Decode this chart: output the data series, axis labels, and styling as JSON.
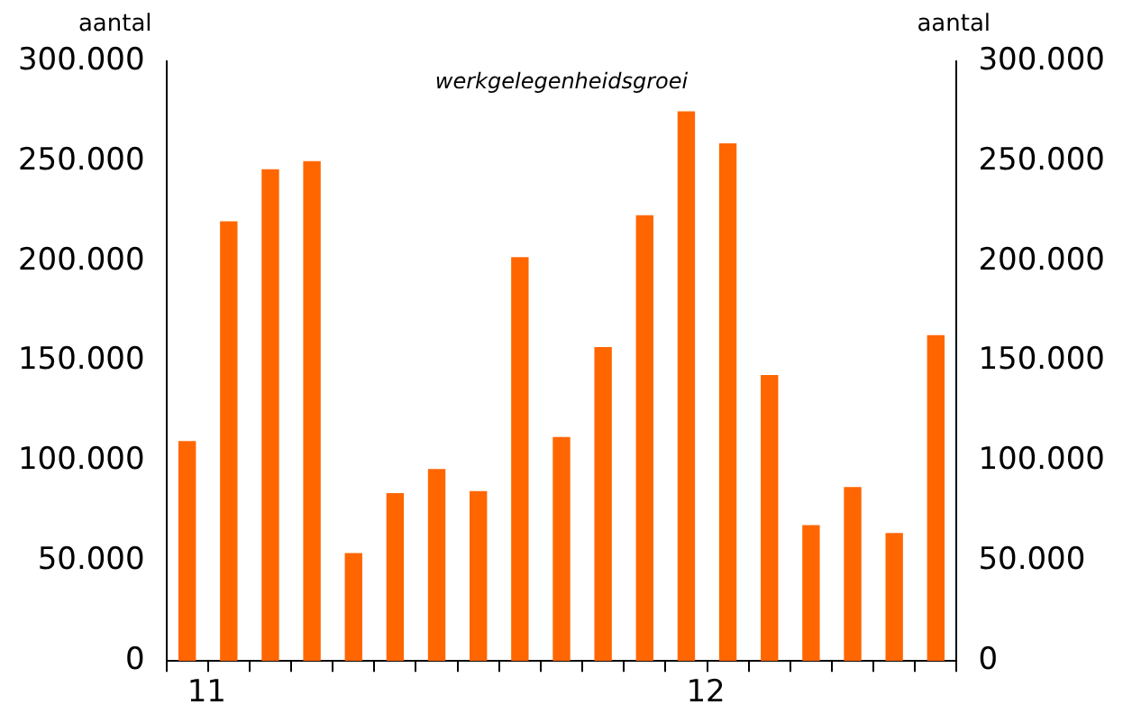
{
  "chart_data": {
    "type": "bar",
    "title": "werkgelegenheidsgroei",
    "ylabel": "aantal",
    "y2label": "aantal",
    "categories": [
      "11",
      null,
      null,
      null,
      null,
      null,
      null,
      null,
      null,
      null,
      null,
      null,
      "12",
      null,
      null,
      null,
      null,
      null,
      null
    ],
    "values": [
      110000,
      220000,
      246000,
      250000,
      54000,
      84000,
      96000,
      85000,
      202000,
      112000,
      157000,
      223000,
      275000,
      259000,
      143000,
      68000,
      87000,
      64000,
      163000
    ],
    "color": "#ff6600",
    "ylim": [
      0,
      300000
    ],
    "yticks": [
      {
        "value": 0,
        "label": "0"
      },
      {
        "value": 50000,
        "label": "50.000"
      },
      {
        "value": 100000,
        "label": "100.000"
      },
      {
        "value": 150000,
        "label": "150.000"
      },
      {
        "value": 200000,
        "label": "200.000"
      },
      {
        "value": 250000,
        "label": "250.000"
      },
      {
        "value": 300000,
        "label": "300.000"
      }
    ],
    "y2lim": [
      0,
      300000
    ],
    "y2ticks": [
      {
        "value": 0,
        "label": "0"
      },
      {
        "value": 50000,
        "label": "50.000"
      },
      {
        "value": 100000,
        "label": "100.000"
      },
      {
        "value": 150000,
        "label": "150.000"
      },
      {
        "value": 200000,
        "label": "200.000"
      },
      {
        "value": 250000,
        "label": "250.000"
      },
      {
        "value": 300000,
        "label": "300.000"
      }
    ],
    "grid": false,
    "legend": false
  }
}
